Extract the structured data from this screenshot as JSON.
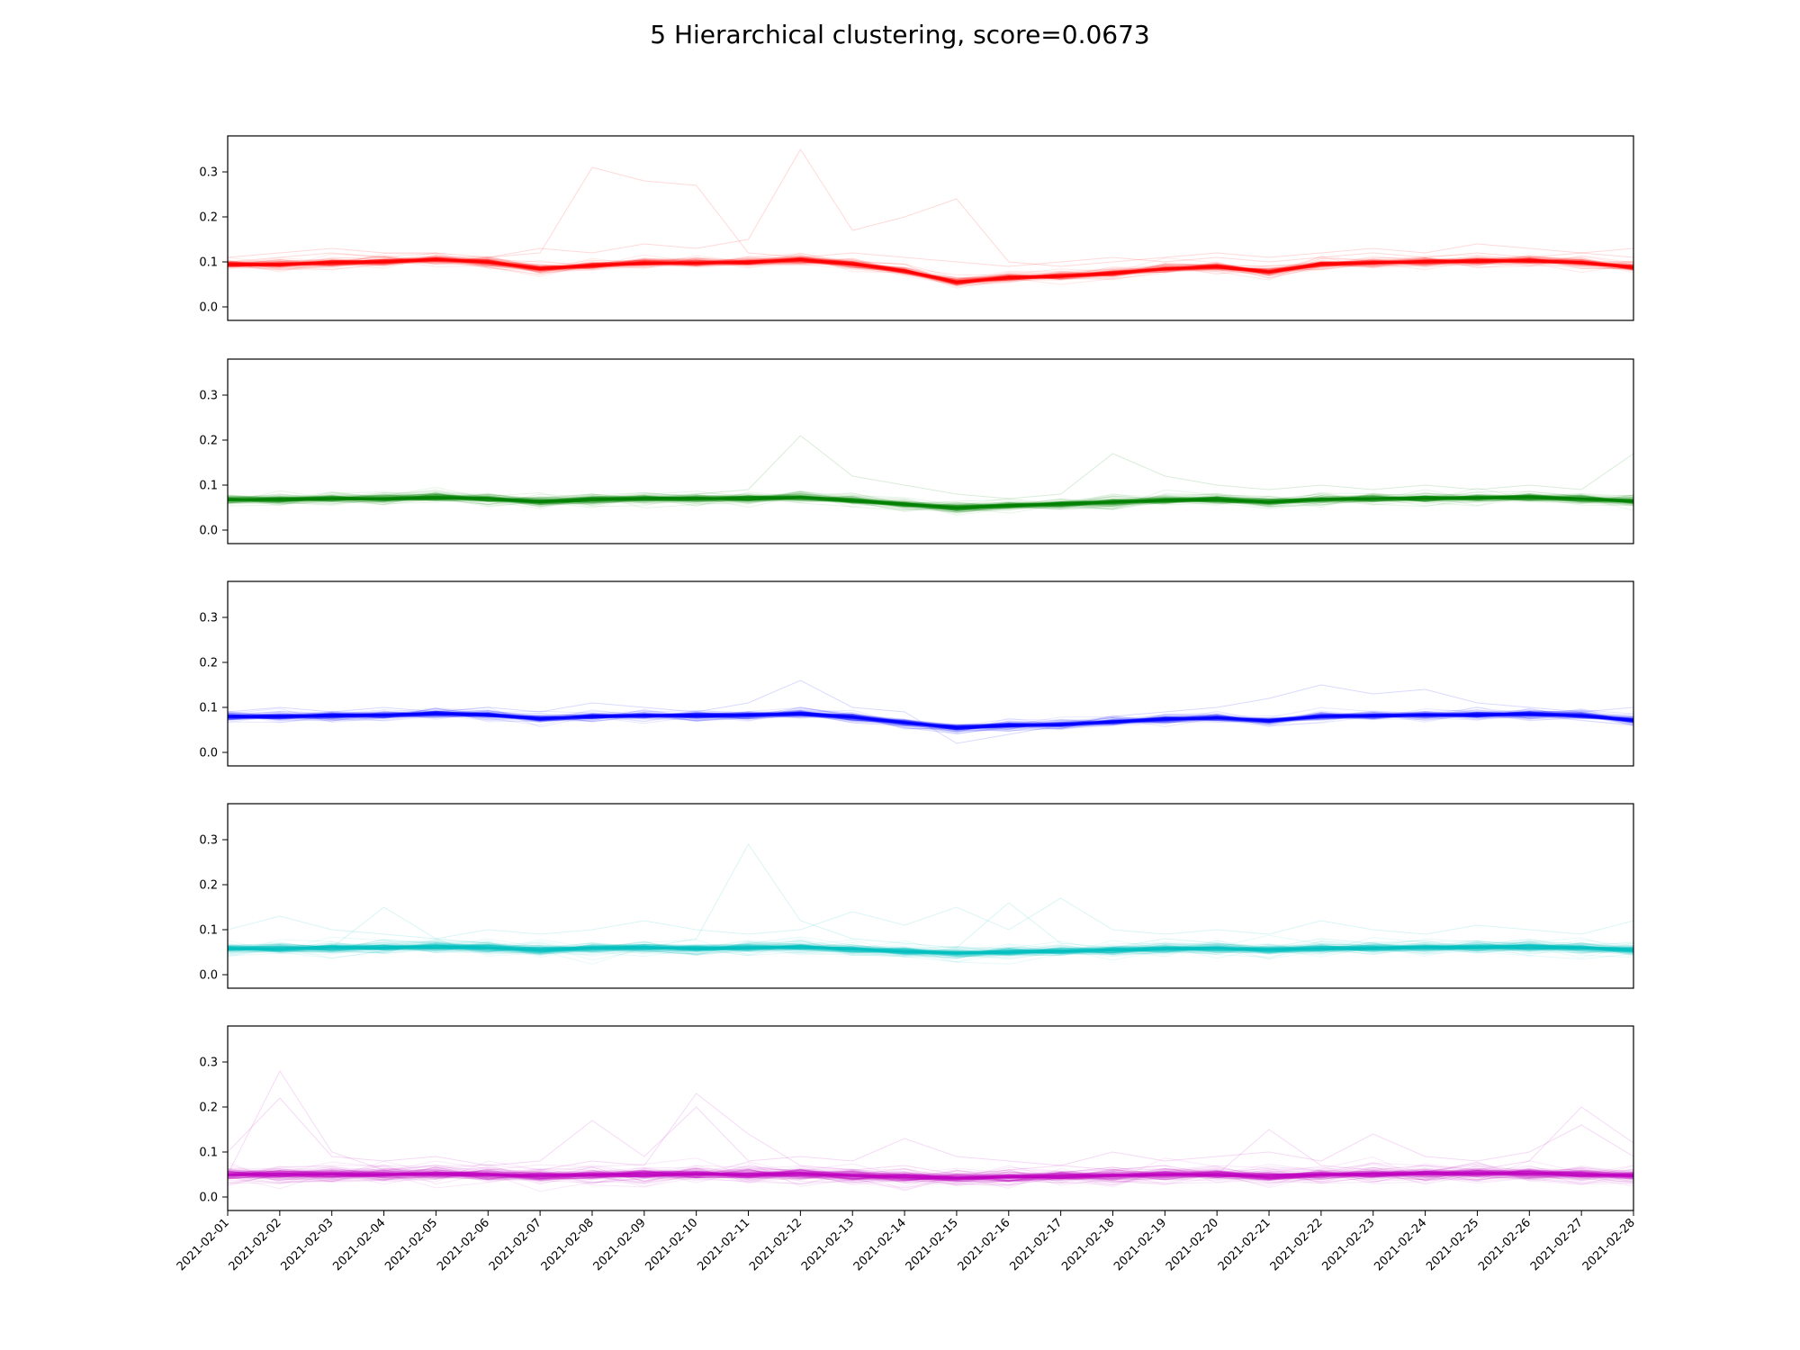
{
  "title": "5 Hierarchical clustering, score=0.0673",
  "colors": [
    "#ff0000",
    "#008000",
    "#0000ff",
    "#00bfbf",
    "#bf00bf"
  ],
  "chart_data": {
    "type": "line",
    "title": "5 Hierarchical clustering, score=0.0673",
    "subplots": 5,
    "shared_x": true,
    "ylim": [
      -0.03,
      0.38
    ],
    "yticks": [
      "0.0",
      "0.1",
      "0.2",
      "0.3"
    ],
    "x": [
      "2021-02-01",
      "2021-02-02",
      "2021-02-03",
      "2021-02-04",
      "2021-02-05",
      "2021-02-06",
      "2021-02-07",
      "2021-02-08",
      "2021-02-09",
      "2021-02-10",
      "2021-02-11",
      "2021-02-12",
      "2021-02-13",
      "2021-02-14",
      "2021-02-15",
      "2021-02-16",
      "2021-02-17",
      "2021-02-18",
      "2021-02-19",
      "2021-02-20",
      "2021-02-21",
      "2021-02-22",
      "2021-02-23",
      "2021-02-24",
      "2021-02-25",
      "2021-02-26",
      "2021-02-27",
      "2021-02-28"
    ],
    "clusters": [
      {
        "color": "#ff0000",
        "center": [
          0.095,
          0.095,
          0.098,
          0.1,
          0.105,
          0.1,
          0.085,
          0.092,
          0.098,
          0.098,
          0.1,
          0.105,
          0.095,
          0.08,
          0.055,
          0.065,
          0.068,
          0.075,
          0.085,
          0.09,
          0.078,
          0.095,
          0.098,
          0.1,
          0.102,
          0.103,
          0.098,
          0.088
        ],
        "spread": 0.03,
        "outliers": [
          [
            0.1,
            0.11,
            0.12,
            0.11,
            0.1,
            0.11,
            0.12,
            0.31,
            0.28,
            0.27,
            0.12,
            0.11,
            0.12,
            0.11,
            0.1,
            0.09,
            0.1,
            0.11,
            0.1,
            0.11,
            0.1,
            0.11,
            0.12,
            0.11,
            0.12,
            0.11,
            0.12,
            0.11
          ],
          [
            0.11,
            0.12,
            0.13,
            0.12,
            0.12,
            0.11,
            0.13,
            0.12,
            0.14,
            0.13,
            0.15,
            0.35,
            0.17,
            0.2,
            0.24,
            0.1,
            0.09,
            0.1,
            0.11,
            0.12,
            0.11,
            0.12,
            0.13,
            0.12,
            0.14,
            0.13,
            0.12,
            0.13
          ]
        ]
      },
      {
        "color": "#008000",
        "center": [
          0.068,
          0.068,
          0.07,
          0.07,
          0.073,
          0.07,
          0.063,
          0.068,
          0.07,
          0.07,
          0.07,
          0.073,
          0.066,
          0.058,
          0.05,
          0.055,
          0.058,
          0.062,
          0.066,
          0.068,
          0.062,
          0.068,
          0.07,
          0.071,
          0.072,
          0.073,
          0.07,
          0.064
        ],
        "spread": 0.035,
        "outliers": [
          [
            0.07,
            0.08,
            0.07,
            0.08,
            0.07,
            0.08,
            0.07,
            0.08,
            0.07,
            0.08,
            0.09,
            0.21,
            0.12,
            0.1,
            0.08,
            0.07,
            0.08,
            0.17,
            0.12,
            0.1,
            0.09,
            0.1,
            0.09,
            0.1,
            0.09,
            0.1,
            0.09,
            0.17
          ]
        ]
      },
      {
        "color": "#0000ff",
        "center": [
          0.08,
          0.08,
          0.082,
          0.083,
          0.086,
          0.083,
          0.075,
          0.08,
          0.082,
          0.082,
          0.083,
          0.086,
          0.078,
          0.066,
          0.055,
          0.06,
          0.062,
          0.068,
          0.074,
          0.077,
          0.07,
          0.08,
          0.082,
          0.083,
          0.084,
          0.085,
          0.082,
          0.072
        ],
        "spread": 0.03,
        "outliers": [
          [
            0.09,
            0.1,
            0.09,
            0.1,
            0.09,
            0.1,
            0.09,
            0.11,
            0.1,
            0.09,
            0.11,
            0.16,
            0.1,
            0.09,
            0.02,
            0.04,
            0.06,
            0.08,
            0.09,
            0.1,
            0.12,
            0.15,
            0.13,
            0.14,
            0.11,
            0.1,
            0.09,
            0.1
          ]
        ]
      },
      {
        "color": "#00bfbf",
        "center": [
          0.058,
          0.058,
          0.06,
          0.06,
          0.062,
          0.06,
          0.055,
          0.058,
          0.06,
          0.059,
          0.06,
          0.062,
          0.057,
          0.052,
          0.048,
          0.05,
          0.052,
          0.055,
          0.058,
          0.059,
          0.055,
          0.059,
          0.06,
          0.061,
          0.061,
          0.062,
          0.06,
          0.055
        ],
        "spread": 0.04,
        "outliers": [
          [
            0.06,
            0.07,
            0.06,
            0.15,
            0.08,
            0.07,
            0.06,
            0.07,
            0.06,
            0.08,
            0.29,
            0.12,
            0.08,
            0.07,
            0.06,
            0.16,
            0.07,
            0.06,
            0.08,
            0.07,
            0.06,
            0.08,
            0.07,
            0.06,
            0.07,
            0.06,
            0.07,
            0.06
          ],
          [
            0.1,
            0.13,
            0.1,
            0.09,
            0.08,
            0.1,
            0.09,
            0.1,
            0.12,
            0.1,
            0.09,
            0.1,
            0.14,
            0.11,
            0.15,
            0.1,
            0.17,
            0.1,
            0.09,
            0.1,
            0.09,
            0.12,
            0.1,
            0.09,
            0.11,
            0.1,
            0.09,
            0.12
          ]
        ]
      },
      {
        "color": "#bf00bf",
        "center": [
          0.05,
          0.05,
          0.05,
          0.05,
          0.052,
          0.05,
          0.047,
          0.05,
          0.051,
          0.051,
          0.05,
          0.052,
          0.048,
          0.045,
          0.042,
          0.044,
          0.046,
          0.048,
          0.05,
          0.05,
          0.046,
          0.05,
          0.051,
          0.052,
          0.052,
          0.052,
          0.05,
          0.047
        ],
        "spread": 0.05,
        "outliers": [
          [
            0.05,
            0.28,
            0.1,
            0.06,
            0.07,
            0.05,
            0.06,
            0.08,
            0.07,
            0.23,
            0.14,
            0.07,
            0.06,
            0.07,
            0.05,
            0.06,
            0.07,
            0.06,
            0.07,
            0.05,
            0.15,
            0.07,
            0.06,
            0.07,
            0.06,
            0.08,
            0.2,
            0.12
          ],
          [
            0.1,
            0.22,
            0.09,
            0.08,
            0.09,
            0.07,
            0.08,
            0.17,
            0.09,
            0.2,
            0.08,
            0.09,
            0.08,
            0.13,
            0.09,
            0.08,
            0.07,
            0.1,
            0.08,
            0.09,
            0.1,
            0.08,
            0.14,
            0.09,
            0.08,
            0.1,
            0.16,
            0.09
          ]
        ]
      }
    ]
  }
}
